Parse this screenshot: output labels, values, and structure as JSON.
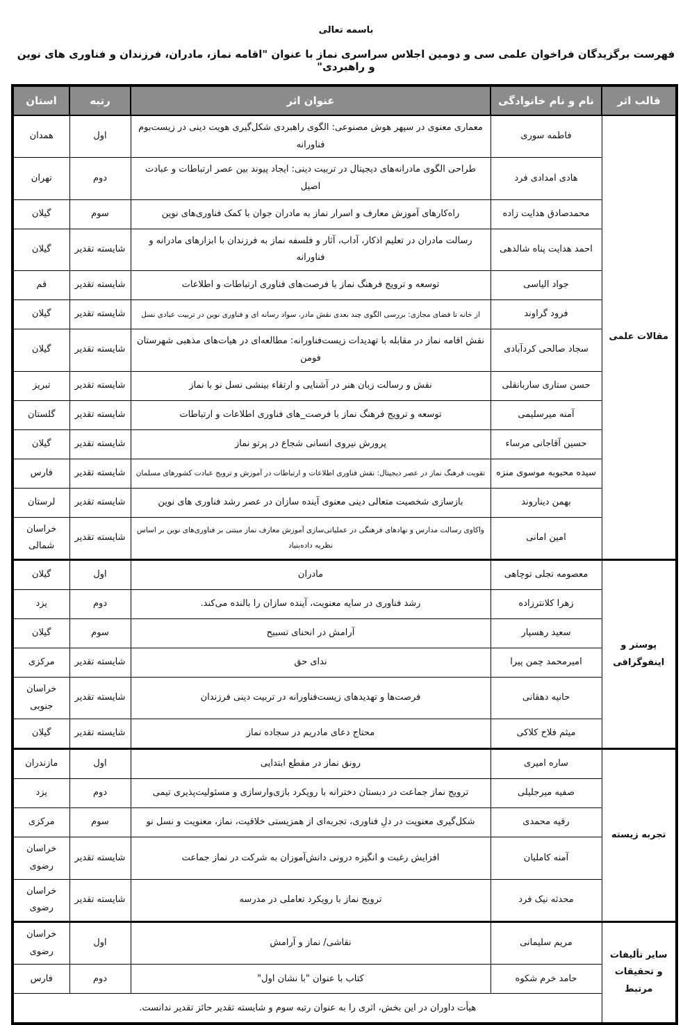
{
  "page": {
    "bismillah": "باسمه تعالی",
    "title": "فهرست برگزیدگان فراخوان علمی سی و دومین اجلاس سراسری نماز با عنوان \"اقامه نماز، مادران، فرزندان و فناوری های نوین و راهبردی\""
  },
  "colors": {
    "header_bg": "#8c8c8c",
    "header_text": "#ffffff",
    "border": "#000000"
  },
  "table": {
    "headers": {
      "format": "قالب اثر",
      "name": "نام و نام خانوادگی",
      "title": "عنوان اثر",
      "rank": "رتبه",
      "province": "استان"
    },
    "sections": [
      {
        "format": "مقالات علمی",
        "rows": [
          {
            "name": "فاطمه سوری",
            "title": "معماری معنوی در سپهر هوش مصنوعی: الگوی راهبردی شکل‌گیری هویت دینی در زیست‌بوم فناورانه",
            "rank": "اول",
            "province": "همدان"
          },
          {
            "name": "هادی  امدادی فرد",
            "title": "طراحی الگوی مادرانه‌های دیجیتال در تربیت دینی: ایجاد پیوند بین عصر ارتباطات و عبادت اصیل",
            "rank": "دوم",
            "province": "تهران"
          },
          {
            "name": "محمدصادق هدایت زاده",
            "title": "راه‌کارهای آموزش معارف و اسرار نماز به مادران جوان با کمک فناوری‌های نوین",
            "rank": "سوم",
            "province": "گیلان"
          },
          {
            "name": "احمد هدایت پناه شالدهی",
            "title": "رسالت مادران در تعلیم اذکار، آداب، آثار و فلسفه نماز به فرزندان با ابزارهای مادرانه و فناورانه",
            "rank": "شایسته تقدیر",
            "province": "گیلان"
          },
          {
            "name": "جواد الیاسی",
            "title": "توسعه و ترویج فرهنگ نماز با فرصت‌های فناوری ارتباطات و اطلاعات",
            "rank": "شایسته تقدیر",
            "province": "قم"
          },
          {
            "name": "فرود گراوند",
            "title": "از خانه تا فضای مجازی: بررسی الگوی چند بعدی نقش مادر، سواد رسانه ای و فناوری نوین در تربیت عبادی نسل",
            "rank": "شایسته تقدیر",
            "province": "گیلان",
            "small": true
          },
          {
            "name": "سجاد صالحی کردآبادی",
            "title": "نقش اقامه نماز در مقابله با تهدیدات زیست‌فناورانه: مطالعه‌ای در هیات‌های مذهبی شهرستان فومن",
            "rank": "شایسته تقدیر",
            "province": "گیلان"
          },
          {
            "name": "حسن ستاری ساربانقلی",
            "title": "نقش و رسالت زبان هنر در آشنایی و ارتقاء بینشی نسل نو با نماز",
            "rank": "شایسته تقدیر",
            "province": "تبریز"
          },
          {
            "name": "آمنه میرسلیمی",
            "title": "توسعه و ترویج فرهنگ نماز با فرصت_های فناوری اطلاعات و ارتباطات",
            "rank": "شایسته تقدیر",
            "province": "گلستان"
          },
          {
            "name": "حسین آقاجانی مرساء",
            "title": "پرورش نیروی انسانی شجاع در پرتو نماز",
            "rank": "شایسته تقدیر",
            "province": "گیلان"
          },
          {
            "name": "سیده محبوبه موسوی منزه",
            "title": "تقویت فرهنگ نماز در عصر دیجیتال: نقش فناوری اطلاعات و ارتباطات در آموزش و ترویج عبادت کشورهای مسلمان",
            "rank": "شایسته تقدیر",
            "province": "فارس",
            "small": true
          },
          {
            "name": "بهمن دیناروند",
            "title": "بازسازی شخصیت متعالی دینی معنوی آینده سازان در عصر رشد فناوری های نوین",
            "rank": "شایسته تقدیر",
            "province": "لرستان"
          },
          {
            "name": "امین امانی",
            "title": "واکاوی رسالت مدارس و نهادهای فرهنگی در عملیاتی‌سازی آموزش معارف نماز مبتنی بر فناوری‌های نوین بر اساس نظریه داده‌بنیاد",
            "rank": "شایسته تقدیر",
            "province": "خراسان شمالی",
            "small": true
          }
        ]
      },
      {
        "format": "پوستر و اینفوگرافی",
        "rows": [
          {
            "name": "معصومه تجلی توچاهی",
            "title": "مادران",
            "rank": "اول",
            "province": "گیلان"
          },
          {
            "name": "زهرا کلانترزاده",
            "title": "رشد فناوری در سایه معنویت، آینده سازان را بالنده می‌کند.",
            "rank": "دوم",
            "province": "یزد"
          },
          {
            "name": "سعید رهسپار",
            "title": "آرامش در انحنای تسبیح",
            "rank": "سوم",
            "province": "گیلان"
          },
          {
            "name": "امیرمحمد چمن پیرا",
            "title": "ندای حق",
            "rank": "شایسته تقدیر",
            "province": "مرکزی"
          },
          {
            "name": "حانیه دهقانی",
            "title": "فرصت‌ها و تهدیدهای زیست‌فناورانه در تربیت دینی فرزندان",
            "rank": "شایسته تقدیر",
            "province": "خراسان جنوبی"
          },
          {
            "name": "میثم فلاح کلاکی",
            "title": "محتاج دعای مادریم در سجاده نماز",
            "rank": "شایسته تقدیر",
            "province": "گیلان"
          }
        ]
      },
      {
        "format": "تجربه زیسته",
        "rows": [
          {
            "name": "ساره امیری",
            "title": "رونق نماز در مقطع ابتدایی",
            "rank": "اول",
            "province": "مازندران"
          },
          {
            "name": "صفیه میرجلیلی",
            "title": "ترویج نماز جماعت در دبستان دخترانه با رویکرد بازی‌وارسازی و مسئولیت‌پذیری تیمی",
            "rank": "دوم",
            "province": "یزد"
          },
          {
            "name": "رقیه محمدی",
            "title": "شکل‌گیری معنویت در دلِ فناوری، تجربه‌ای از همزیستی خلاقیت، نماز، معنویت و نسل نو",
            "rank": "سوم",
            "province": "مرکزی"
          },
          {
            "name": "آمنه کاملیان",
            "title": "افزایش رغبت و انگیزه درونی دانش‌آموزان به شرکت در نماز جماعت",
            "rank": "شایسته تقدیر",
            "province": "خراسان رضوی"
          },
          {
            "name": "محدثه نیک فرد",
            "title": "ترویج نماز با رویکرد تعاملی در مدرسه",
            "rank": "شایسته تقدیر",
            "province": "خراسان رضوی"
          }
        ]
      },
      {
        "format": "سایر تألیفات و تحقیقات مرتبط",
        "rows": [
          {
            "name": "مریم سلیمانی",
            "title": "نقاشی/ نماز و آرامش",
            "rank": "اول",
            "province": "خراسان رضوی"
          },
          {
            "name": "حامد خرم شکوه",
            "title": "کتاب با عنوان \"با نشان اول\"",
            "rank": "دوم",
            "province": "فارس"
          }
        ],
        "footnote": "هیأت داوران در این بخش، اثری را به عنوان رتبه سوم و شایسته تقدیر حائز تقدیر ندانست."
      }
    ]
  }
}
